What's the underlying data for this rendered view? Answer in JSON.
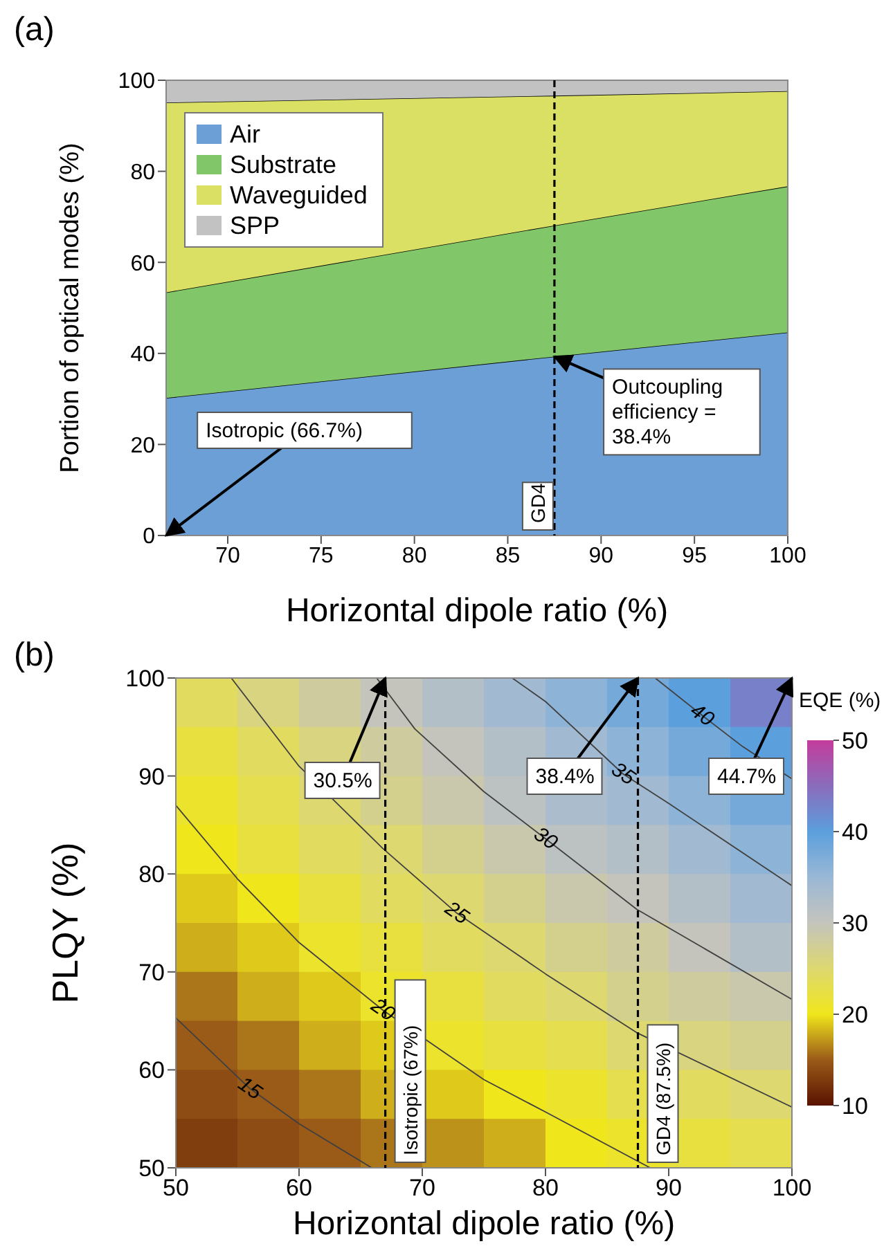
{
  "chart_data": [
    {
      "type": "area",
      "title": "(a)",
      "xlabel": "Horizontal dipole ratio (%)",
      "ylabel": "Portion of optical modes (%)",
      "x": [
        66.7,
        87.5,
        100
      ],
      "stacked": true,
      "series": [
        {
          "name": "Air",
          "color": "#6b9fd6",
          "values": [
            30.2,
            39.3,
            44.6
          ]
        },
        {
          "name": "Substrate",
          "color": "#82c66a",
          "values": [
            23.2,
            28.8,
            32.1
          ]
        },
        {
          "name": "Waveguided",
          "color": "#d9e063",
          "values": [
            41.7,
            28.5,
            20.9
          ]
        },
        {
          "name": "SPP",
          "color": "#c2c2c2",
          "values": [
            4.9,
            3.4,
            2.4
          ]
        }
      ],
      "xlim": [
        66.7,
        100
      ],
      "xticks": [
        70,
        75,
        80,
        85,
        90,
        95,
        100
      ],
      "ylim": [
        0,
        100
      ],
      "yticks": [
        0,
        20,
        40,
        60,
        80,
        100
      ],
      "legend": "top left",
      "ref_lines": [
        {
          "axis": "x",
          "value": 87.5,
          "label": "GD4",
          "line_style": "dashed",
          "color": "#000000"
        }
      ],
      "annotations": [
        {
          "text": "Isotropic (66.7%)",
          "x": 66.7,
          "y": 0
        },
        {
          "text": "Outcoupling efficiency = 38.4%",
          "x": 87.5,
          "y": 39.3
        }
      ]
    },
    {
      "type": "heatmap",
      "title": "(b)",
      "xlabel": "Horizontal dipole ratio (%)",
      "ylabel": "PLQY (%)",
      "clabel": "EQE (%)",
      "xlim": [
        50,
        100
      ],
      "xticks": [
        50,
        60,
        70,
        80,
        90,
        100
      ],
      "ylim": [
        50,
        100
      ],
      "yticks": [
        50,
        60,
        70,
        80,
        90,
        100
      ],
      "clim": [
        10,
        50
      ],
      "cticks": [
        10,
        20,
        30,
        40,
        50
      ],
      "cells": [
        [
          24,
          26,
          28,
          30,
          32,
          34,
          36,
          38,
          40,
          43
        ],
        [
          22,
          24,
          26,
          28,
          30,
          32,
          34,
          36,
          38,
          40
        ],
        [
          21,
          23,
          25,
          27,
          29,
          31,
          33,
          34,
          36,
          38
        ],
        [
          20,
          22,
          24,
          25,
          27,
          29,
          31,
          32,
          34,
          36
        ],
        [
          19,
          20,
          22,
          24,
          25,
          27,
          29,
          30,
          32,
          34
        ],
        [
          18,
          19,
          21,
          22,
          24,
          25,
          27,
          28,
          30,
          32
        ],
        [
          16,
          18,
          19,
          21,
          22,
          24,
          25,
          27,
          28,
          29
        ],
        [
          15,
          16,
          18,
          19,
          21,
          22,
          23,
          25,
          26,
          27
        ],
        [
          14,
          15,
          16,
          18,
          19,
          20,
          21,
          23,
          24,
          25
        ],
        [
          13,
          14,
          15,
          16,
          17,
          18,
          20,
          21,
          22,
          23
        ]
      ],
      "series": [
        {
          "type": "line",
          "color": "#404040",
          "x": [
            50,
            56,
            60,
            65.9
          ],
          "values": [
            65.3,
            58.1,
            54.5,
            50
          ]
        },
        {
          "type": "line",
          "color": "#404040",
          "x": [
            50,
            55,
            60,
            66.8,
            75,
            80,
            88.5
          ],
          "values": [
            87,
            79.5,
            73,
            66.1,
            59,
            55.7,
            50
          ]
        },
        {
          "type": "line",
          "color": "#404040",
          "x": [
            54.5,
            60,
            66.8,
            72.8,
            80,
            87.4,
            100
          ],
          "values": [
            100,
            91,
            82.6,
            76,
            69.8,
            63.8,
            56.2
          ]
        },
        {
          "type": "line",
          "color": "#404040",
          "x": [
            66.3,
            69.4,
            75,
            80,
            87.4,
            100
          ],
          "values": [
            100,
            94.8,
            88.4,
            83.6,
            76.4,
            67.2
          ]
        },
        {
          "type": "line",
          "color": "#404040",
          "x": [
            77.3,
            80,
            86.3,
            90,
            100
          ],
          "values": [
            100,
            97.6,
            90.2,
            87.2,
            78.8
          ]
        },
        {
          "type": "line",
          "color": "#404040",
          "x": [
            88.9,
            92.7,
            96,
            100
          ],
          "values": [
            100,
            96.2,
            93,
            89.7
          ]
        }
      ],
      "ref_lines": [
        {
          "axis": "x",
          "value": 67,
          "label": "Isotropic (67%)",
          "line_style": "dashed",
          "color": "#000000"
        },
        {
          "axis": "x",
          "value": 87.5,
          "label": "GD4 (87.5%)",
          "line_style": "dashed",
          "color": "#000000"
        }
      ],
      "annotations": [
        {
          "text": "30.5%",
          "x": 67,
          "y": 100
        },
        {
          "text": "38.4%",
          "x": 87.5,
          "y": 100
        },
        "44.7%",
        {
          "text": "15",
          "x": 56,
          "y": 58.1
        },
        {
          "text": "20",
          "x": 66.8,
          "y": 66.1
        },
        {
          "text": "25",
          "x": 72.8,
          "y": 76
        },
        {
          "text": "30",
          "x": 80,
          "y": 83.6
        },
        {
          "text": "35",
          "x": 86.3,
          "y": 90.2
        },
        {
          "text": "40",
          "x": 92.7,
          "y": 96.2
        }
      ]
    }
  ]
}
